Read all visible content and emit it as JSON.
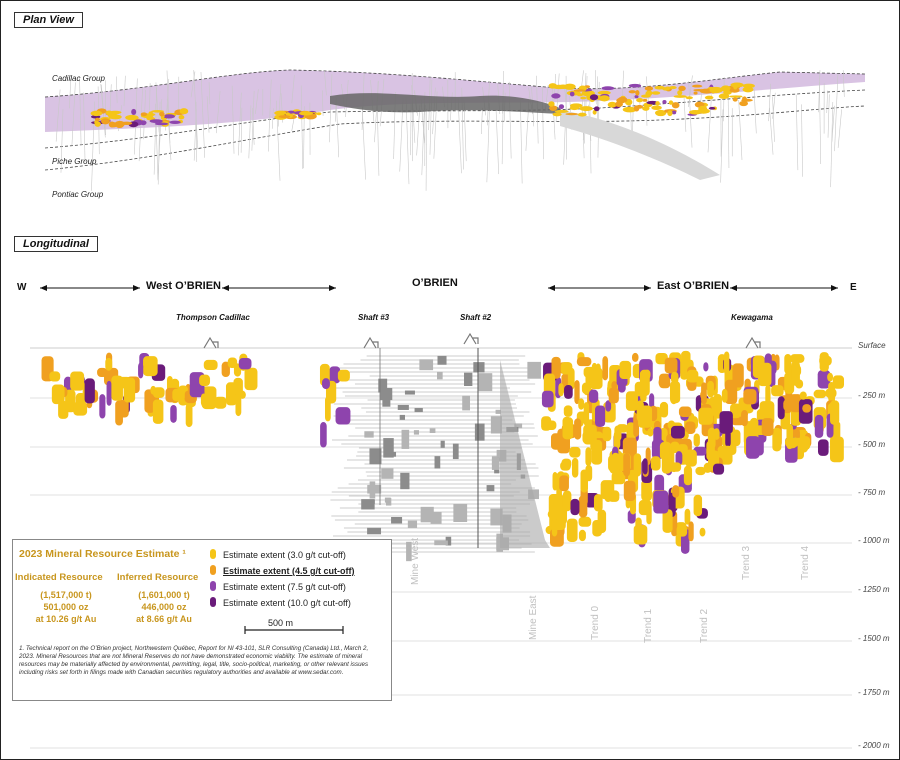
{
  "plan_view": {
    "title": "Plan View",
    "groups": [
      "Cadillac Group",
      "Piche Group",
      "Pontiac Group"
    ]
  },
  "longitudinal": {
    "title": "Longitudinal",
    "west_letter": "W",
    "east_letter": "E",
    "west_label": "West O’BRIEN",
    "center_label": "O’BRIEN",
    "east_label": "East O’BRIEN",
    "annotations": [
      "Thompson Cadillac",
      "Shaft #3",
      "Shaft #2",
      "Kewagama"
    ],
    "depth_labels": [
      "Surface",
      "- 250 m",
      "- 500 m",
      "- 750 m",
      "- 1000 m",
      "- 1250 m",
      "- 1500 m",
      "- 1750 m",
      "- 2000 m"
    ],
    "trends": [
      "Mine West",
      "Mine East",
      "Trend 0",
      "Trend 1",
      "Trend 2",
      "Trend 3",
      "Trend 4"
    ]
  },
  "legend": {
    "title": "2023 Mineral Resource Estimate ¹",
    "indicated": {
      "heading": "Indicated Resource",
      "tonnes": "(1,517,000 t)",
      "ounces": "501,000 oz",
      "grade": "at 10.26 g/t Au"
    },
    "inferred": {
      "heading": "Inferred Resource",
      "tonnes": "(1,601,000 t)",
      "ounces": "446,000 oz",
      "grade": "at 8.66 g/t Au"
    },
    "items": [
      {
        "label": "Estimate extent (3.0  g/t cut-off)",
        "color": "#f5c518"
      },
      {
        "label": "Estimate extent (4.5  g/t cut-off)",
        "color": "#f0a020"
      },
      {
        "label": "Estimate extent (7.5 g/t cut-off)",
        "color": "#8e44ad"
      },
      {
        "label": "Estimate extent (10.0 g/t cut-off)",
        "color": "#6a1b7a"
      }
    ],
    "scale_label": "500 m",
    "footnote": "1. Technical report on the O’Brien project, Northwestern Québec, Report for NI 43-101, SLR Consulting (Canada) Ltd., March 2, 2023.   Mineral Resources that are not Mineral Reserves do not have demonstrated economic viability. The estimate of mineral resources may be materially affected by environmental, permitting, legal, title, socio-political, marketing, or other relevant issues including  risks set forth in filings made with Canadian securities regulatory authorities and available at www.sedar.com."
  },
  "colors": {
    "yellow": "#f5c518",
    "orange": "#f0a020",
    "purple": "#8e44ad",
    "dark_purple": "#6a1b7a",
    "lavender": "#d9c3e3",
    "gray": "#9a9a9a"
  }
}
